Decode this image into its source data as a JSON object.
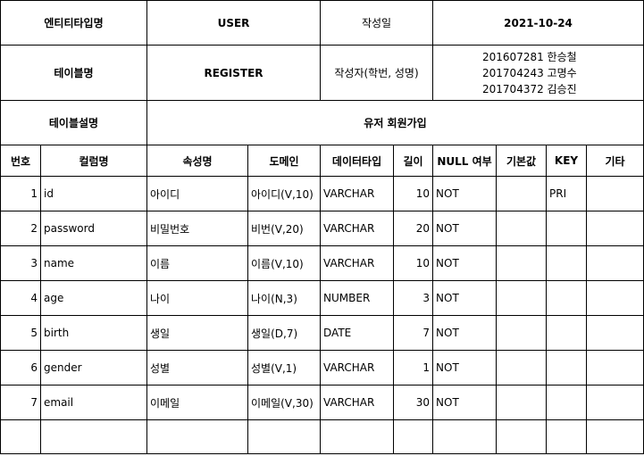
{
  "meta": {
    "entity_type_label": "엔티티타입명",
    "entity_type_value": "USER",
    "created_date_label": "작성일",
    "created_date_value": "2021-10-24",
    "table_name_label": "테이블명",
    "table_name_value": "REGISTER",
    "author_label": "작성자(학번, 성명)",
    "authors": [
      "201607281 한승철",
      "201704243 고명수",
      "201704372 김승진"
    ],
    "table_desc_label": "테이블설명",
    "table_desc_value": "유저 회원가입"
  },
  "columns": {
    "no": "번호",
    "column_name": "컬럼명",
    "attribute_name": "속성명",
    "domain": "도메인",
    "data_type": "데이터타입",
    "length": "길이",
    "nullable": "NULL 여부",
    "default": "기본값",
    "key": "KEY",
    "etc": "기타"
  },
  "rows": [
    {
      "no": "1",
      "column": "id",
      "attr": "아이디",
      "domain": "아이디(V,10)",
      "type": "VARCHAR",
      "length": "10",
      "null": "NOT",
      "default": "",
      "key": "PRI",
      "etc": ""
    },
    {
      "no": "2",
      "column": "password",
      "attr": "비밀번호",
      "domain": "비번(V,20)",
      "type": "VARCHAR",
      "length": "20",
      "null": "NOT",
      "default": "",
      "key": "",
      "etc": ""
    },
    {
      "no": "3",
      "column": "name",
      "attr": "이름",
      "domain": "이름(V,10)",
      "type": "VARCHAR",
      "length": "10",
      "null": "NOT",
      "default": "",
      "key": "",
      "etc": ""
    },
    {
      "no": "4",
      "column": "age",
      "attr": "나이",
      "domain": "나이(N,3)",
      "type": "NUMBER",
      "length": "3",
      "null": "NOT",
      "default": "",
      "key": "",
      "etc": ""
    },
    {
      "no": "5",
      "column": "birth",
      "attr": "생일",
      "domain": "생일(D,7)",
      "type": "DATE",
      "length": "7",
      "null": "NOT",
      "default": "",
      "key": "",
      "etc": ""
    },
    {
      "no": "6",
      "column": "gender",
      "attr": "성별",
      "domain": "성별(V,1)",
      "type": "VARCHAR",
      "length": "1",
      "null": "NOT",
      "default": "",
      "key": "",
      "etc": ""
    },
    {
      "no": "7",
      "column": "email",
      "attr": "이메일",
      "domain": "이메일(V,30)",
      "type": "VARCHAR",
      "length": "30",
      "null": "NOT",
      "default": "",
      "key": "",
      "etc": ""
    },
    {
      "no": "",
      "column": "",
      "attr": "",
      "domain": "",
      "type": "",
      "length": "",
      "null": "",
      "default": "",
      "key": "",
      "etc": ""
    }
  ]
}
